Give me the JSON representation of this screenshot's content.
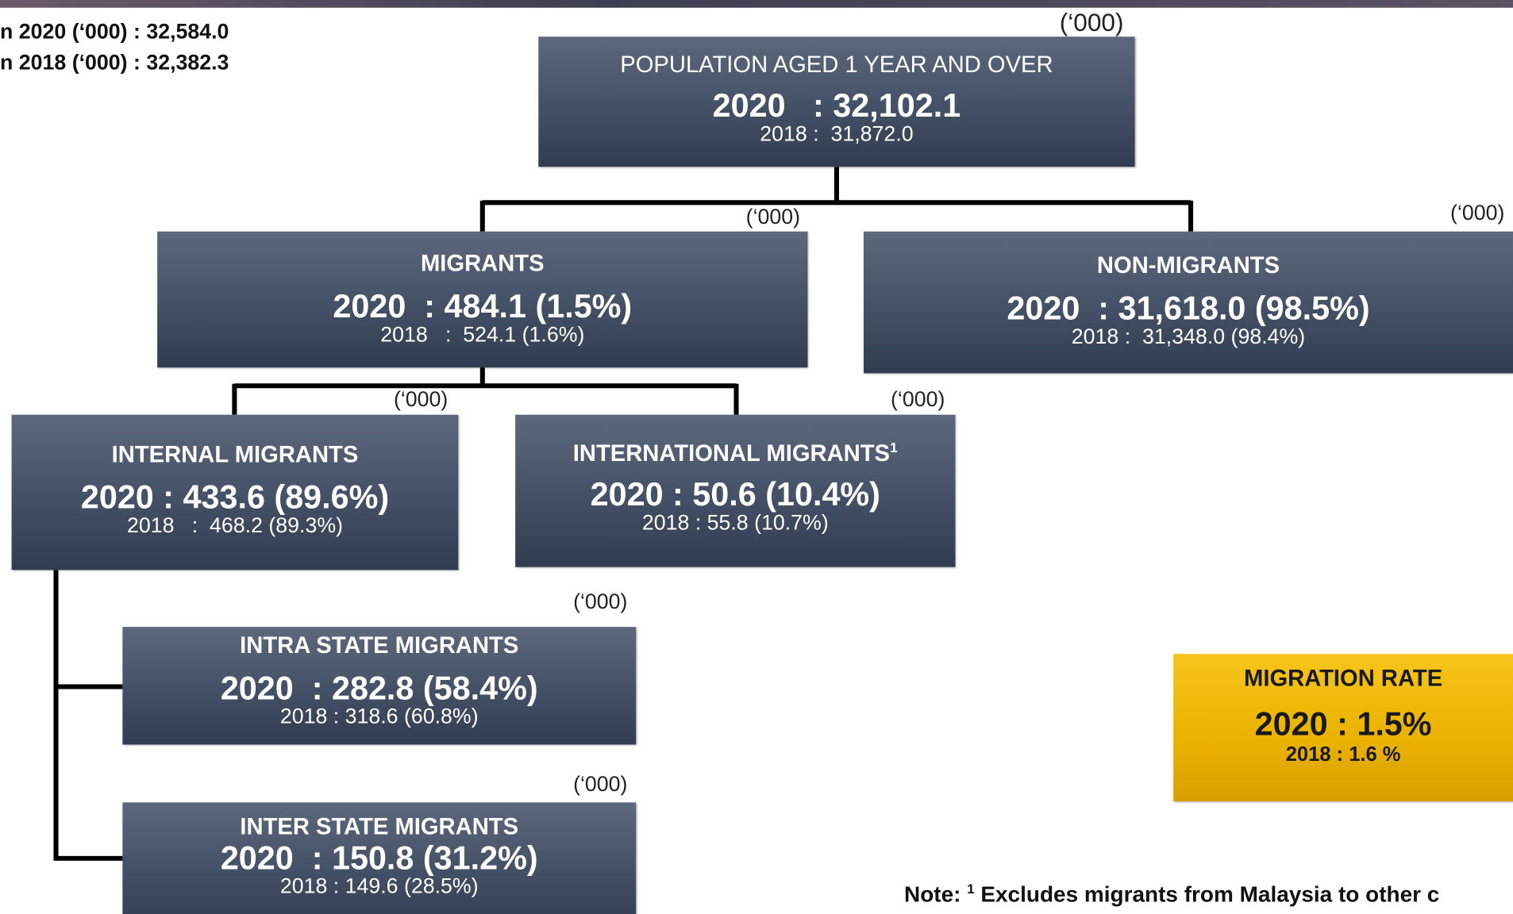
{
  "header": {
    "lines": [
      "n 2020 (‘000) : 32,584.0",
      "n 2018 (‘000) : 32,382.3"
    ]
  },
  "nodes": [
    {
      "unit": "(‘000)",
      "title": "POPULATION AGED 1 YEAR AND OVER",
      "value_2020": "2020   : 32,102.1",
      "value_2018": "2018 :  31,872.0"
    },
    {
      "unit": "(‘000)",
      "title": "MIGRANTS",
      "value_2020": "2020  : 484.1 (1.5%)",
      "value_2018": "2018   :  524.1 (1.6%)"
    },
    {
      "unit": "(‘000)",
      "title": "NON-MIGRANTS",
      "value_2020": "2020  : 31,618.0 (98.5%)",
      "value_2018": "2018 :  31,348.0 (98.4%)"
    },
    {
      "unit": "(‘000)",
      "title": "INTERNAL MIGRANTS",
      "value_2020": "2020 : 433.6 (89.6%)",
      "value_2018": "2018   :  468.2 (89.3%)"
    },
    {
      "unit": "(‘000)",
      "title": "INTERNATIONAL MIGRANTS",
      "sup": "1",
      "value_2020": "2020 : 50.6 (10.4%)",
      "value_2018": "2018 : 55.8 (10.7%)"
    },
    {
      "unit": "(‘000)",
      "title": "INTRA STATE MIGRANTS",
      "value_2020": "2020  : 282.8 (58.4%)",
      "value_2018": "2018 : 318.6 (60.8%)"
    },
    {
      "unit": "(‘000)",
      "title": "INTER STATE MIGRANTS",
      "value_2020": "2020  : 150.8 (31.2%)",
      "value_2018": "2018 : 149.6 (28.5%)"
    }
  ],
  "migration_rate": {
    "title": "MIGRATION RATE",
    "value_2020": "2020 : 1.5%",
    "value_2018": "2018 : 1.6 %"
  },
  "note": {
    "prefix": "Note: ",
    "sup": "1",
    "text": " Excludes migrants from Malaysia to other c"
  }
}
